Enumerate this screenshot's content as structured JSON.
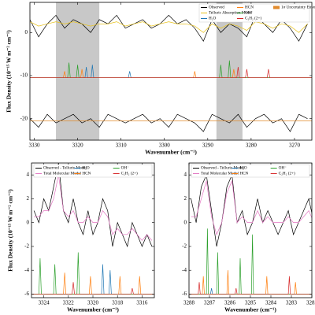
{
  "chart_data": [
    {
      "type": "line",
      "xlabel": "Wavenumber (cm⁻¹)",
      "ylabel": "Flux Density (10⁻¹⁵ W m⁻² cm⁻¹)",
      "xlim": [
        3331,
        3266
      ],
      "ylim": [
        -25,
        7
      ],
      "xticks": [
        3330,
        3320,
        3310,
        3300,
        3290,
        3280,
        3270
      ],
      "yticks": [
        -20,
        -10,
        0
      ],
      "bands": [
        [
          3325,
          3315
        ],
        [
          3288,
          3282
        ]
      ],
      "band_color": "#c8c8c8",
      "legend": "upper right",
      "series": [
        {
          "name": "Observed",
          "color": "#000000",
          "x": [
            3331,
            3329,
            3327,
            3325,
            3323,
            3321,
            3319,
            3317,
            3315,
            3313,
            3311,
            3309,
            3307,
            3305,
            3303,
            3301,
            3299,
            3297,
            3295,
            3293,
            3291,
            3289,
            3287,
            3285,
            3283,
            3281,
            3279,
            3277,
            3275,
            3273,
            3271,
            3269,
            3267
          ],
          "values": [
            3,
            -1,
            2,
            4,
            1,
            3,
            2,
            0,
            3,
            2,
            4,
            1,
            2,
            3,
            1,
            2,
            4,
            2,
            3,
            1,
            -2,
            3,
            0,
            2,
            1,
            -1,
            4,
            2,
            0,
            3,
            1,
            -2,
            2
          ]
        },
        {
          "name": "Telluric Absorption Model",
          "color": "#e8c21a",
          "x": [
            3331,
            3329,
            3327,
            3325,
            3323,
            3321,
            3319,
            3317,
            3315,
            3313,
            3311,
            3309,
            3307,
            3305,
            3303,
            3301,
            3299,
            3297,
            3295,
            3293,
            3291,
            3289,
            3287,
            3285,
            3283,
            3281,
            3279,
            3277,
            3275,
            3273,
            3271,
            3269,
            3267
          ],
          "values": [
            2.5,
            1.5,
            2,
            2.5,
            2,
            2.5,
            2,
            1.5,
            2,
            2,
            2.5,
            1.5,
            2,
            2.5,
            1.5,
            2,
            2.5,
            2,
            2,
            1.5,
            0,
            2,
            1,
            2,
            1.5,
            0.5,
            2.5,
            2,
            1,
            2,
            1.5,
            0,
            2
          ]
        },
        {
          "name": "H₂O",
          "color": "#1f77b4",
          "x": [
            3331,
            3318.3,
            3318,
            3317.7,
            3316.9,
            3316.6,
            3316.3,
            3308.3,
            3308,
            3307.7,
            3266
          ],
          "values": [
            -10.5,
            -10.5,
            -8,
            -10.5,
            -10.5,
            -7.5,
            -10.5,
            -10.5,
            -9,
            -10.5,
            -10.5
          ]
        },
        {
          "name": "HCN",
          "color": "#ff7f0e",
          "x": [
            3331,
            3323.3,
            3323,
            3322.7,
            3319.3,
            3319,
            3318.7,
            3293.3,
            3293,
            3292.7,
            3284.3,
            3284,
            3283.7,
            3266
          ],
          "values": [
            -10.5,
            -10.5,
            -9,
            -10.5,
            -10.5,
            -8.5,
            -10.5,
            -10.5,
            -9,
            -10.5,
            -10.5,
            -8.5,
            -10.5,
            -10.5
          ]
        },
        {
          "name": "OH⁻",
          "color": "#2ca02c",
          "x": [
            3331,
            3322.3,
            3322,
            3321.7,
            3320.3,
            3320,
            3319.7,
            3287.3,
            3287,
            3286.7,
            3285.3,
            3285,
            3284.7,
            3266
          ],
          "values": [
            -10.5,
            -10.5,
            -7,
            -10.5,
            -10.5,
            -7.5,
            -10.5,
            -10.5,
            -7.5,
            -10.5,
            -10.5,
            -6.5,
            -10.5,
            -10.5
          ]
        },
        {
          "name": "C₂H₂ (2+)",
          "color": "#d62728",
          "x": [
            3331,
            3283.3,
            3283,
            3282.7,
            3281.3,
            3281,
            3280.7,
            3276.3,
            3276,
            3275.7,
            3266
          ],
          "values": [
            -10.5,
            -10.5,
            -8,
            -10.5,
            -10.5,
            -8.5,
            -10.5,
            -10.5,
            -8.5,
            -10.5,
            -10.5
          ]
        },
        {
          "color": "#000000",
          "x": [
            3331,
            3329,
            3327,
            3325,
            3323,
            3321,
            3319,
            3317,
            3315,
            3313,
            3311,
            3309,
            3307,
            3305,
            3303,
            3301,
            3299,
            3297,
            3295,
            3293,
            3291,
            3289,
            3287,
            3285,
            3283,
            3281,
            3279,
            3277,
            3275,
            3273,
            3271,
            3269,
            3267
          ],
          "values": [
            -20,
            -22,
            -19,
            -21,
            -20,
            -19,
            -21,
            -20,
            -22,
            -19,
            -20,
            -21,
            -20,
            -19,
            -21,
            -20,
            -22,
            -19,
            -20,
            -21,
            -23,
            -19,
            -20,
            -21,
            -19,
            -22,
            -20,
            -19,
            -21,
            -20,
            -23,
            -19,
            -20
          ]
        },
        {
          "name": "1σ Uncertainty Envelope",
          "color": "#e08a2c",
          "legend_marker": "patch",
          "x": [
            3331,
            3266
          ],
          "values": [
            -20.5,
            -20.5
          ]
        }
      ]
    },
    {
      "type": "line",
      "xlabel": "Wavenumber (cm⁻¹)",
      "ylabel": "Flux Density (10⁻¹⁵ W m⁻² cm⁻¹)",
      "xlim": [
        3325,
        3315
      ],
      "ylim": [
        -6.3,
        5
      ],
      "xticks": [
        3324,
        3322,
        3320,
        3318,
        3316
      ],
      "yticks": [
        -6,
        -4,
        -2,
        0,
        2,
        4
      ],
      "legend": "upper center",
      "series": [
        {
          "name": "Observed - Telluric Model",
          "color": "#000000",
          "x": [
            3324.8,
            3324.4,
            3324,
            3323.6,
            3323.2,
            3322.8,
            3322.4,
            3322,
            3321.6,
            3321.2,
            3320.8,
            3320.4,
            3320,
            3319.6,
            3319.2,
            3318.8,
            3318.4,
            3318,
            3317.6,
            3317.2,
            3316.8,
            3316.4,
            3316,
            3315.6,
            3315.2
          ],
          "values": [
            1,
            0,
            2,
            1,
            3,
            5,
            1,
            0,
            2,
            0,
            -1,
            1,
            -1,
            0,
            2,
            1,
            -2,
            0,
            -1,
            -2,
            0,
            -1,
            -2,
            -1,
            -2
          ]
        },
        {
          "name": "Total Molecular Model",
          "color": "#e377c2",
          "x": [
            3324.8,
            3324.4,
            3324,
            3323.6,
            3323.2,
            3322.8,
            3322.4,
            3322,
            3321.6,
            3321.2,
            3320.8,
            3320.4,
            3320,
            3319.6,
            3319.2,
            3318.8,
            3318.4,
            3318,
            3317.6,
            3317.2,
            3316.8,
            3316.4,
            3316,
            3315.6,
            3315.2
          ],
          "values": [
            0.5,
            0.5,
            1,
            1,
            2,
            4,
            1,
            0.5,
            1,
            0,
            0,
            0.5,
            0,
            0,
            1,
            0.5,
            -1,
            -0.5,
            -1,
            -1,
            -0.5,
            -1,
            -1.5,
            -1,
            -1.5
          ]
        },
        {
          "name": "H₂O",
          "color": "#1f77b4",
          "x": [
            3325,
            3319.3,
            3319.2,
            3319.1,
            3318.7,
            3318.6,
            3318.5,
            3315
          ],
          "values": [
            -6,
            -6,
            -3.5,
            -6,
            -6,
            -4,
            -6,
            -6
          ]
        },
        {
          "name": "HCN",
          "color": "#ff7f0e",
          "x": [
            3325,
            3322.4,
            3322.3,
            3322.2,
            3320.3,
            3320.2,
            3320.1,
            3317.9,
            3317.8,
            3317.7,
            3316.3,
            3316.2,
            3316.1,
            3315
          ],
          "values": [
            -6,
            -6,
            -4.2,
            -6,
            -6,
            -4.5,
            -6,
            -6,
            -4.5,
            -6,
            -6,
            -4.5,
            -6,
            -6
          ]
        },
        {
          "name": "OH⁻",
          "color": "#2ca02c",
          "x": [
            3325,
            3324.4,
            3324.3,
            3324.2,
            3323.2,
            3323.1,
            3323,
            3321.3,
            3321.2,
            3321.1,
            3315
          ],
          "values": [
            -6,
            -6,
            -3,
            -6,
            -6,
            -3.5,
            -6,
            -6,
            -2.5,
            -6,
            -6
          ]
        },
        {
          "name": "C₂H₂ (2+)",
          "color": "#d62728",
          "x": [
            3325,
            3321.7,
            3321.6,
            3321.5,
            3316.9,
            3316.8,
            3316.7,
            3315
          ],
          "values": [
            -6,
            -6,
            -5,
            -6,
            -6,
            -5.5,
            -6,
            -6
          ]
        }
      ]
    },
    {
      "type": "line",
      "xlabel": "Wavenumber (cm⁻¹)",
      "xlim": [
        3288,
        3282
      ],
      "ylim": [
        -6.3,
        5
      ],
      "xticks": [
        3288,
        3287,
        3286,
        3285,
        3284,
        3283,
        3282
      ],
      "yticks": [
        -6,
        -4,
        -2,
        0,
        2,
        4
      ],
      "legend": "upper center",
      "series": [
        {
          "name": "Observed - Telluric Model",
          "color": "#000000",
          "x": [
            3287.9,
            3287.65,
            3287.4,
            3287.15,
            3286.9,
            3286.65,
            3286.4,
            3286.15,
            3285.9,
            3285.65,
            3285.4,
            3285.15,
            3284.9,
            3284.65,
            3284.4,
            3284.15,
            3283.9,
            3283.65,
            3283.4,
            3283.15,
            3282.9,
            3282.65,
            3282.4,
            3282.15,
            3281.9
          ],
          "values": [
            2,
            0,
            3,
            4,
            1,
            -2,
            0,
            3,
            4,
            0,
            1,
            -1,
            0,
            2,
            0,
            1,
            0,
            -1,
            0,
            1,
            -1,
            0,
            1,
            2,
            0
          ]
        },
        {
          "name": "Total Molecular Model",
          "color": "#e377c2",
          "x": [
            3287.9,
            3287.65,
            3287.4,
            3287.15,
            3286.9,
            3286.65,
            3286.4,
            3286.15,
            3285.9,
            3285.65,
            3285.4,
            3285.15,
            3284.9,
            3284.65,
            3284.4,
            3284.15,
            3283.9,
            3283.65,
            3283.4,
            3283.15,
            3282.9,
            3282.65,
            3282.4,
            3282.15,
            3281.9
          ],
          "values": [
            0.5,
            0.5,
            2,
            3.5,
            0.5,
            -1,
            0,
            2.5,
            3.5,
            0,
            0.5,
            0,
            0,
            1,
            0,
            0.5,
            0,
            0,
            0,
            0.5,
            0,
            0,
            0.5,
            1,
            0
          ]
        },
        {
          "name": "H₂O",
          "color": "#1f77b4",
          "x": [
            3288,
            3286.95,
            3286.9,
            3286.85,
            3282
          ],
          "values": [
            -6,
            -6,
            -5.5,
            -6,
            -6
          ]
        },
        {
          "name": "HCN",
          "color": "#ff7f0e",
          "x": [
            3288,
            3287.35,
            3287.3,
            3287.25,
            3286.15,
            3286.1,
            3286.05,
            3284.25,
            3284.2,
            3284.15,
            3282.85,
            3282.8,
            3282.75,
            3282
          ],
          "values": [
            -6,
            -6,
            -4.5,
            -6,
            -6,
            -4,
            -6,
            -6,
            -4.5,
            -6,
            -6,
            -5,
            -6,
            -6
          ]
        },
        {
          "name": "OH⁻",
          "color": "#2ca02c",
          "x": [
            3288,
            3287.15,
            3287.1,
            3287.05,
            3286.65,
            3286.6,
            3286.55,
            3285.55,
            3285.5,
            3285.45,
            3284.95,
            3284.9,
            3284.85,
            3282
          ],
          "values": [
            -6,
            -6,
            -0.5,
            -6,
            -6,
            -2.5,
            -6,
            -6,
            -3,
            -6,
            -6,
            -1,
            -6,
            -6
          ]
        },
        {
          "name": "C₂H₂ (2+)",
          "color": "#d62728",
          "x": [
            3288,
            3287.55,
            3287.5,
            3287.45,
            3285.75,
            3285.7,
            3285.65,
            3283.15,
            3283.1,
            3283.05,
            3282
          ],
          "values": [
            -6,
            -6,
            -5,
            -6,
            -6,
            -5.5,
            -6,
            -6,
            -4.5,
            -6,
            -6
          ]
        }
      ]
    }
  ]
}
